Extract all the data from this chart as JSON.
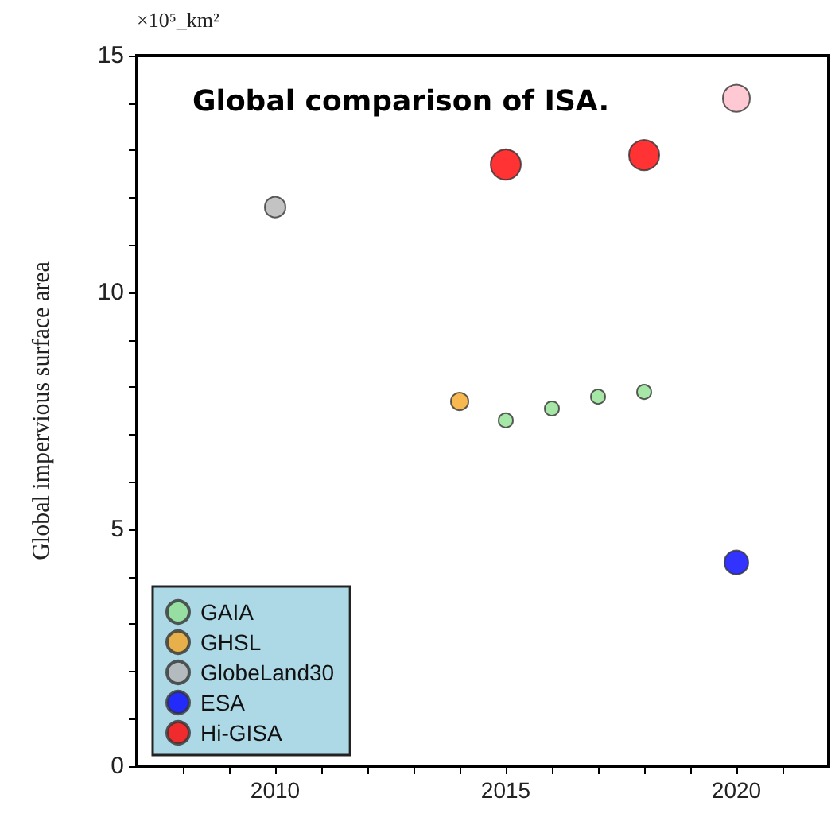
{
  "chart_data": {
    "type": "scatter",
    "title": "Global comparison of ISA.",
    "ylabel": "Global impervious surface area",
    "annotations": [
      "×10⁵_km²"
    ],
    "series": [
      {
        "name": "GAIA",
        "color": "#90e090",
        "x": [
          2015,
          2016,
          2017,
          2018
        ],
        "values": [
          7.3,
          7.55,
          7.8,
          7.9
        ]
      },
      {
        "name": "GHSL",
        "color": "#f5a623",
        "x": [
          2014
        ],
        "values": [
          7.7
        ]
      },
      {
        "name": "GlobeLand30",
        "color": "#b4b4b4",
        "x": [
          2010
        ],
        "values": [
          11.8
        ]
      },
      {
        "name": "ESA",
        "color": "#0000ff",
        "x": [
          2020
        ],
        "values": [
          4.3
        ]
      },
      {
        "color": "#ffbbc8",
        "x": [
          2020
        ],
        "values": [
          14.1
        ]
      },
      {
        "name": "Hi-GISA",
        "color": "#ff0000",
        "x": [
          2015,
          2018
        ],
        "values": [
          12.7,
          12.9
        ]
      }
    ],
    "xlim": [
      2007,
      2022
    ],
    "xticks": [
      {
        "value": 2008,
        "label": null
      },
      {
        "value": 2009,
        "label": null
      },
      2010,
      {
        "value": 2011,
        "label": null
      },
      {
        "value": 2012,
        "label": null
      },
      {
        "value": 2013,
        "label": null
      },
      {
        "value": 2014,
        "label": null
      },
      2015,
      {
        "value": 2016,
        "label": null
      },
      {
        "value": 2017,
        "label": null
      },
      {
        "value": 2018,
        "label": null
      },
      {
        "value": 2019,
        "label": null
      },
      2020,
      {
        "value": 2021,
        "label": null
      }
    ],
    "ylim": [
      0,
      15
    ],
    "yticks": [
      0,
      {
        "value": 1,
        "label": null
      },
      {
        "value": 2,
        "label": null
      },
      {
        "value": 3,
        "label": null
      },
      {
        "value": 4,
        "label": null
      },
      5,
      {
        "value": 6,
        "label": null
      },
      {
        "value": 7,
        "label": null
      },
      {
        "value": 8,
        "label": null
      },
      {
        "value": 9,
        "label": null
      },
      10,
      {
        "value": 11,
        "label": null
      },
      {
        "value": 12,
        "label": null
      },
      {
        "value": 13,
        "label": null
      },
      {
        "value": 14,
        "label": null
      },
      15
    ],
    "grid": false,
    "legend": "bottom left",
    "marker": "circle"
  }
}
